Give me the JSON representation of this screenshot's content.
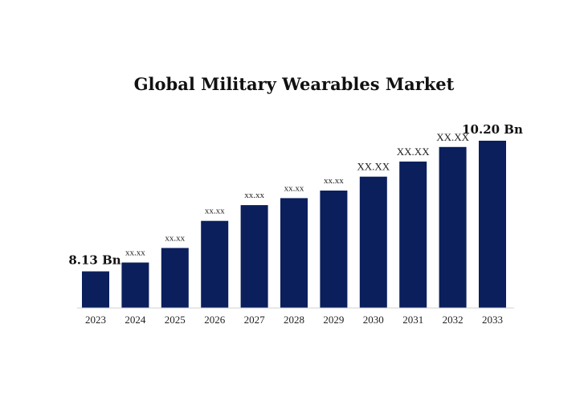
{
  "chart_data": {
    "type": "bar",
    "title": "Global Military Wearables Market",
    "xlabel": "",
    "ylabel": "",
    "categories": [
      "2023",
      "2024",
      "2025",
      "2026",
      "2027",
      "2028",
      "2029",
      "2030",
      "2031",
      "2032",
      "2033"
    ],
    "values": [
      8.13,
      8.27,
      8.5,
      8.93,
      9.18,
      9.29,
      9.41,
      9.63,
      9.87,
      10.1,
      10.2
    ],
    "data_labels": [
      "8.13 Bn",
      "xx.xx",
      "xx.xx",
      "xx.xx",
      "xx.xx",
      "xx.xx",
      "xx.xx",
      "XX.XX",
      "XX.XX",
      "XX.XX",
      "10.20 Bn"
    ],
    "ylim": [
      7.55,
      10.2
    ],
    "grid": false,
    "bar_color": "#0a1f5c",
    "axis_color": "#d0d0d0"
  }
}
